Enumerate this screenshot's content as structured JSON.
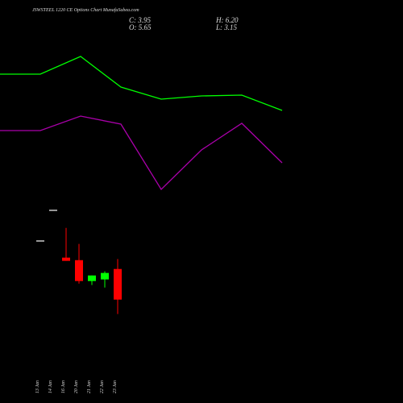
{
  "chart_data": [
    {
      "type": "candlestick",
      "title": "JSWSTEEL 1220 CE Options Chart MunafaSabea.com",
      "ohlc_labels": {
        "close": "C: 3.95",
        "high": "H: 6.20",
        "open": "O: 5.65",
        "low": "L: 3.15"
      },
      "categories": [
        "13 Jan",
        "14 Jan",
        "16 Jan",
        "20 Jan",
        "21 Jan",
        "22 Jan",
        "23 Jan"
      ],
      "open": [
        7.25,
        8.95,
        6.28,
        6.14,
        4.98,
        5.07,
        5.65
      ],
      "high": [
        7.25,
        8.95,
        7.93,
        7.04,
        5.29,
        5.52,
        6.2
      ],
      "low": [
        7.25,
        8.95,
        6.1,
        4.84,
        4.76,
        4.62,
        3.15
      ],
      "close": [
        7.25,
        8.95,
        6.1,
        4.98,
        5.29,
        5.43,
        3.95
      ],
      "up_color": "#00ff00",
      "down_color": "#ff0000",
      "flat_color": "#999999",
      "ylim": [
        0,
        20
      ]
    },
    {
      "type": "line",
      "series": [
        {
          "color": "#00ff00",
          "values": [
            63.2,
            63.2,
            72,
            56.8,
            50.8,
            52.4,
            52.8,
            45.2
          ]
        },
        {
          "color": "#aa00aa",
          "values": [
            35.2,
            35.2,
            42.4,
            38.4,
            6,
            25.6,
            38.8,
            19.2
          ]
        }
      ],
      "ylim": [
        0,
        100
      ]
    }
  ]
}
